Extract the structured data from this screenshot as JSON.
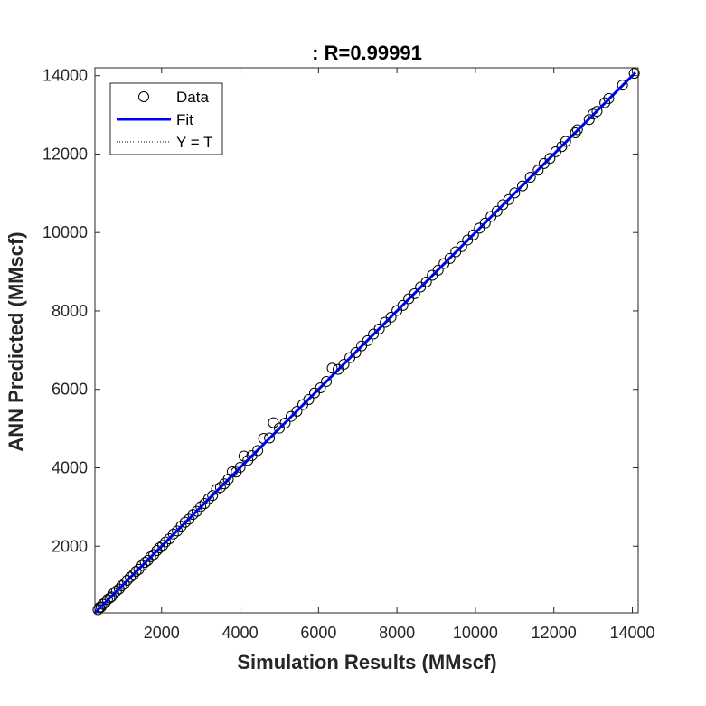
{
  "chart_data": {
    "type": "scatter",
    "title": ": R=0.99991",
    "xlabel": "Simulation Results (MMscf)",
    "ylabel": "ANN Predicted (MMscf)",
    "xlim": [
      300,
      14150
    ],
    "ylim": [
      300,
      14200
    ],
    "xticks": [
      2000,
      4000,
      6000,
      8000,
      10000,
      12000,
      14000
    ],
    "yticks": [
      2000,
      4000,
      6000,
      8000,
      10000,
      12000,
      14000
    ],
    "grid": false,
    "legend_position": "top-left",
    "legend": [
      {
        "label": "Data",
        "style": "marker-circle"
      },
      {
        "label": "Fit",
        "style": "line-solid"
      },
      {
        "label": "Y = T",
        "style": "line-dotted"
      }
    ],
    "fit_line": {
      "name": "Fit",
      "x": [
        300,
        14080
      ],
      "y": [
        300,
        14080
      ],
      "color": "#0000ff"
    },
    "identity_line": {
      "name": "Y = T",
      "x": [
        300,
        14080
      ],
      "y": [
        300,
        14080
      ],
      "color": "#000000"
    },
    "series": [
      {
        "name": "Data",
        "x": [
          380,
          420,
          460,
          500,
          560,
          620,
          680,
          720,
          780,
          850,
          920,
          980,
          1050,
          1120,
          1200,
          1280,
          1350,
          1420,
          1500,
          1580,
          1650,
          1720,
          1800,
          1880,
          1950,
          2030,
          2100,
          2200,
          2300,
          2400,
          2500,
          2600,
          2700,
          2800,
          2900,
          3000,
          3100,
          3200,
          3300,
          3400,
          3500,
          3600,
          3700,
          3800,
          3900,
          4000,
          4100,
          4200,
          4300,
          4450,
          4600,
          4750,
          4850,
          5000,
          5150,
          5300,
          5450,
          5600,
          5750,
          5900,
          6050,
          6200,
          6350,
          6500,
          6650,
          6800,
          6950,
          7100,
          7250,
          7400,
          7550,
          7700,
          7850,
          8000,
          8150,
          8300,
          8450,
          8600,
          8750,
          8900,
          9050,
          9200,
          9350,
          9500,
          9650,
          9800,
          9950,
          10100,
          10250,
          10400,
          10550,
          10700,
          10850,
          11000,
          11200,
          11400,
          11600,
          11750,
          11900,
          12050,
          12200,
          12300,
          12550,
          12600,
          12900,
          13000,
          13100,
          13300,
          13400,
          13750,
          14050
        ],
        "y": [
          380,
          440,
          450,
          520,
          560,
          640,
          680,
          710,
          800,
          860,
          910,
          990,
          1040,
          1130,
          1210,
          1270,
          1360,
          1410,
          1510,
          1590,
          1640,
          1730,
          1790,
          1890,
          1960,
          2020,
          2110,
          2190,
          2310,
          2390,
          2510,
          2610,
          2690,
          2810,
          2890,
          3010,
          3090,
          3210,
          3290,
          3450,
          3500,
          3590,
          3710,
          3900,
          3890,
          4010,
          4300,
          4190,
          4310,
          4440,
          4750,
          4760,
          5150,
          5010,
          5140,
          5310,
          5440,
          5610,
          5740,
          5910,
          6040,
          6200,
          6540,
          6510,
          6640,
          6810,
          6940,
          7110,
          7240,
          7410,
          7540,
          7710,
          7840,
          8010,
          8140,
          8310,
          8440,
          8610,
          8740,
          8910,
          9040,
          9210,
          9340,
          9510,
          9640,
          9810,
          9940,
          10110,
          10240,
          10410,
          10540,
          10710,
          10840,
          11010,
          11190,
          11410,
          11590,
          11760,
          11890,
          12060,
          12190,
          12320,
          12540,
          12620,
          12880,
          13020,
          13090,
          13310,
          13420,
          13760,
          14060
        ]
      }
    ]
  }
}
